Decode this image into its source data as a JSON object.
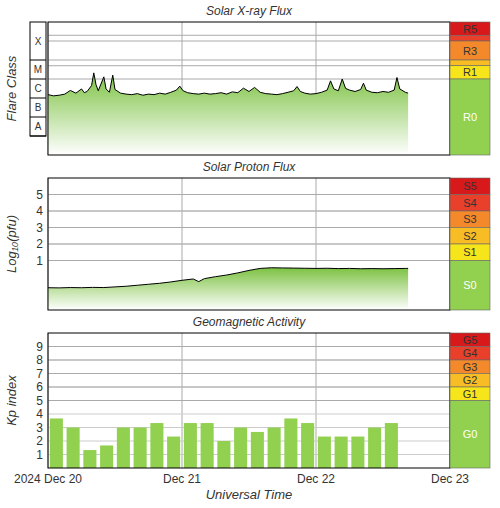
{
  "chart_data": [
    {
      "type": "line",
      "title": "Solar X-ray Flux",
      "y_label": "Flare Class",
      "log": "y",
      "grid": "x",
      "tick_labels": "y",
      "color": "#000000",
      "xlim": [
        0,
        72
      ],
      "xticks": [
        0,
        24,
        48,
        72
      ],
      "ylim": [
        1e-09,
        0.01
      ],
      "yticks": [
        {
          "value": 1e-08,
          "label": "A"
        },
        {
          "value": 1e-07,
          "label": "B"
        },
        {
          "value": 1e-06,
          "label": "C"
        },
        {
          "value": 1e-05,
          "label": "M"
        },
        {
          "value": 0.0001,
          "label": "X"
        }
      ],
      "scale": [
        {
          "label": "R5",
          "value": 0.002,
          "color": "#d7191c"
        },
        {
          "label": null,
          "value": 0.001,
          "color": "#e8402a"
        },
        {
          "label": "R3",
          "value": 0.0001,
          "color": "#f4892b"
        },
        {
          "label": null,
          "value": 5e-05,
          "color": "#f8bd24"
        },
        {
          "label": "R1",
          "value": 1e-05,
          "color": "#f7e51c"
        },
        {
          "label": "R0",
          "color": "#92d050"
        }
      ],
      "x": [
        0,
        1,
        2,
        3,
        4,
        5,
        6,
        6.5,
        7,
        7.8,
        8.2,
        8.6,
        9,
        10,
        10.4,
        11,
        11.6,
        12,
        13,
        14,
        15,
        16,
        17,
        18,
        19,
        20,
        21,
        22,
        23,
        23.6,
        24.2,
        25,
        26,
        27,
        28,
        29,
        30,
        31,
        32,
        33,
        34,
        35,
        36,
        37,
        38,
        39,
        40,
        41,
        42,
        43,
        44,
        44.6,
        45.2,
        46,
        47,
        48,
        49,
        50,
        50.6,
        51.2,
        52,
        52.7,
        53.3,
        54,
        55,
        56,
        56.5,
        57,
        58,
        59,
        60,
        61,
        62,
        62.5,
        63,
        64,
        64.5
      ],
      "values": [
        1.5e-06,
        1.3e-06,
        1.4e-06,
        1.6e-06,
        2.5e-06,
        1.8e-06,
        3e-06,
        1.9e-06,
        2.2e-06,
        4.5e-06,
        2.1e-05,
        5e-06,
        2.4e-06,
        1.3e-05,
        3e-06,
        2e-06,
        1.6e-05,
        2.8e-06,
        1.8e-06,
        1.6e-06,
        1.5e-06,
        1.7e-06,
        1.4e-06,
        1.6e-06,
        1.5e-06,
        1.8e-06,
        1.6e-06,
        2e-06,
        2.6e-06,
        4.2e-06,
        2.4e-06,
        1.9e-06,
        1.7e-06,
        1.6e-06,
        1.8e-06,
        1.6e-06,
        1.7e-06,
        1.9e-06,
        1.6e-06,
        2.1e-06,
        1.9e-06,
        3.3e-06,
        2.2e-06,
        3.6e-06,
        2e-06,
        1.7e-06,
        1.6e-06,
        1.5e-06,
        1.7e-06,
        2e-06,
        2.4e-06,
        4e-06,
        2.2e-06,
        1.8e-06,
        1.6e-06,
        1.7e-06,
        2e-06,
        2.6e-06,
        8e-06,
        3e-06,
        2.4e-06,
        1e-05,
        3.2e-06,
        2.6e-06,
        2.2e-06,
        2.8e-06,
        6e-06,
        2.6e-06,
        2e-06,
        1.9e-06,
        2.2e-06,
        2e-06,
        2.6e-06,
        1.2e-05,
        3e-06,
        2e-06,
        1.8e-06
      ]
    },
    {
      "type": "line",
      "title": "Solar Proton Flux",
      "y_label": "Log₁₀(pfu)",
      "grid": true,
      "tick_labels": "y",
      "color": "#000000",
      "xlim": [
        0,
        72
      ],
      "xticks": [
        0,
        24,
        48,
        72
      ],
      "ylim": [
        -2,
        6
      ],
      "yticks": [
        1,
        2,
        3,
        4,
        5
      ],
      "scale": [
        {
          "label": "S5",
          "value": 5,
          "color": "#d7191c"
        },
        {
          "label": "S4",
          "value": 4,
          "color": "#e8402a"
        },
        {
          "label": "S3",
          "value": 3,
          "color": "#f4892b"
        },
        {
          "label": "S2",
          "value": 2,
          "color": "#f8bd24"
        },
        {
          "label": "S1",
          "value": 1,
          "color": "#f7e51c"
        },
        {
          "label": "S0",
          "color": "#92d050"
        }
      ],
      "x": [
        0,
        2,
        4,
        6,
        8,
        10,
        12,
        14,
        16,
        18,
        20,
        22,
        24,
        26,
        27,
        28,
        30,
        32,
        34,
        36,
        38,
        40,
        42,
        44,
        46,
        48,
        50,
        52,
        54,
        56,
        58,
        60,
        62,
        64,
        64.5
      ],
      "values": [
        -0.65,
        -0.66,
        -0.64,
        -0.65,
        -0.63,
        -0.64,
        -0.6,
        -0.56,
        -0.5,
        -0.44,
        -0.38,
        -0.3,
        -0.2,
        -0.12,
        -0.28,
        -0.1,
        0.02,
        0.12,
        0.25,
        0.4,
        0.52,
        0.56,
        0.55,
        0.54,
        0.53,
        0.52,
        0.53,
        0.51,
        0.52,
        0.5,
        0.51,
        0.5,
        0.51,
        0.52,
        0.52
      ]
    },
    {
      "type": "bar",
      "title": "Geomagnetic Activity",
      "y_label": "Kp index",
      "x_label": "Universal Time",
      "grid": true,
      "color": "#92d050",
      "xlim": [
        0,
        72
      ],
      "xticks": [
        {
          "value": 0,
          "label": "2024 Dec 20"
        },
        {
          "value": 24,
          "label": "Dec 21"
        },
        {
          "value": 48,
          "label": "Dec 22"
        },
        {
          "value": 72,
          "label": "Dec 23"
        }
      ],
      "ylim": [
        0,
        10
      ],
      "yticks": [
        1,
        2,
        3,
        4,
        5,
        6,
        7,
        8,
        9
      ],
      "scale": [
        {
          "label": "G5",
          "value": 9,
          "color": "#d7191c"
        },
        {
          "label": "G4",
          "value": 8,
          "color": "#e8402a"
        },
        {
          "label": "G3",
          "value": 7,
          "color": "#f4892b"
        },
        {
          "label": "G2",
          "value": 6,
          "color": "#f8bd24"
        },
        {
          "label": "G1",
          "value": 5,
          "color": "#f7e51c"
        },
        {
          "label": "G0",
          "color": "#92d050"
        }
      ],
      "x": [
        1.5,
        4.5,
        7.5,
        10.5,
        13.5,
        16.5,
        19.5,
        22.5,
        25.5,
        28.5,
        31.5,
        34.5,
        37.5,
        40.5,
        43.5,
        46.5,
        49.5,
        52.5,
        55.5,
        58.5,
        61.5
      ],
      "values": [
        3.67,
        3.0,
        1.33,
        1.67,
        3.0,
        3.0,
        3.33,
        2.33,
        3.33,
        3.33,
        2.0,
        3.0,
        2.67,
        3.0,
        3.67,
        3.33,
        2.33,
        2.33,
        2.33,
        3.0,
        3.33
      ]
    }
  ]
}
